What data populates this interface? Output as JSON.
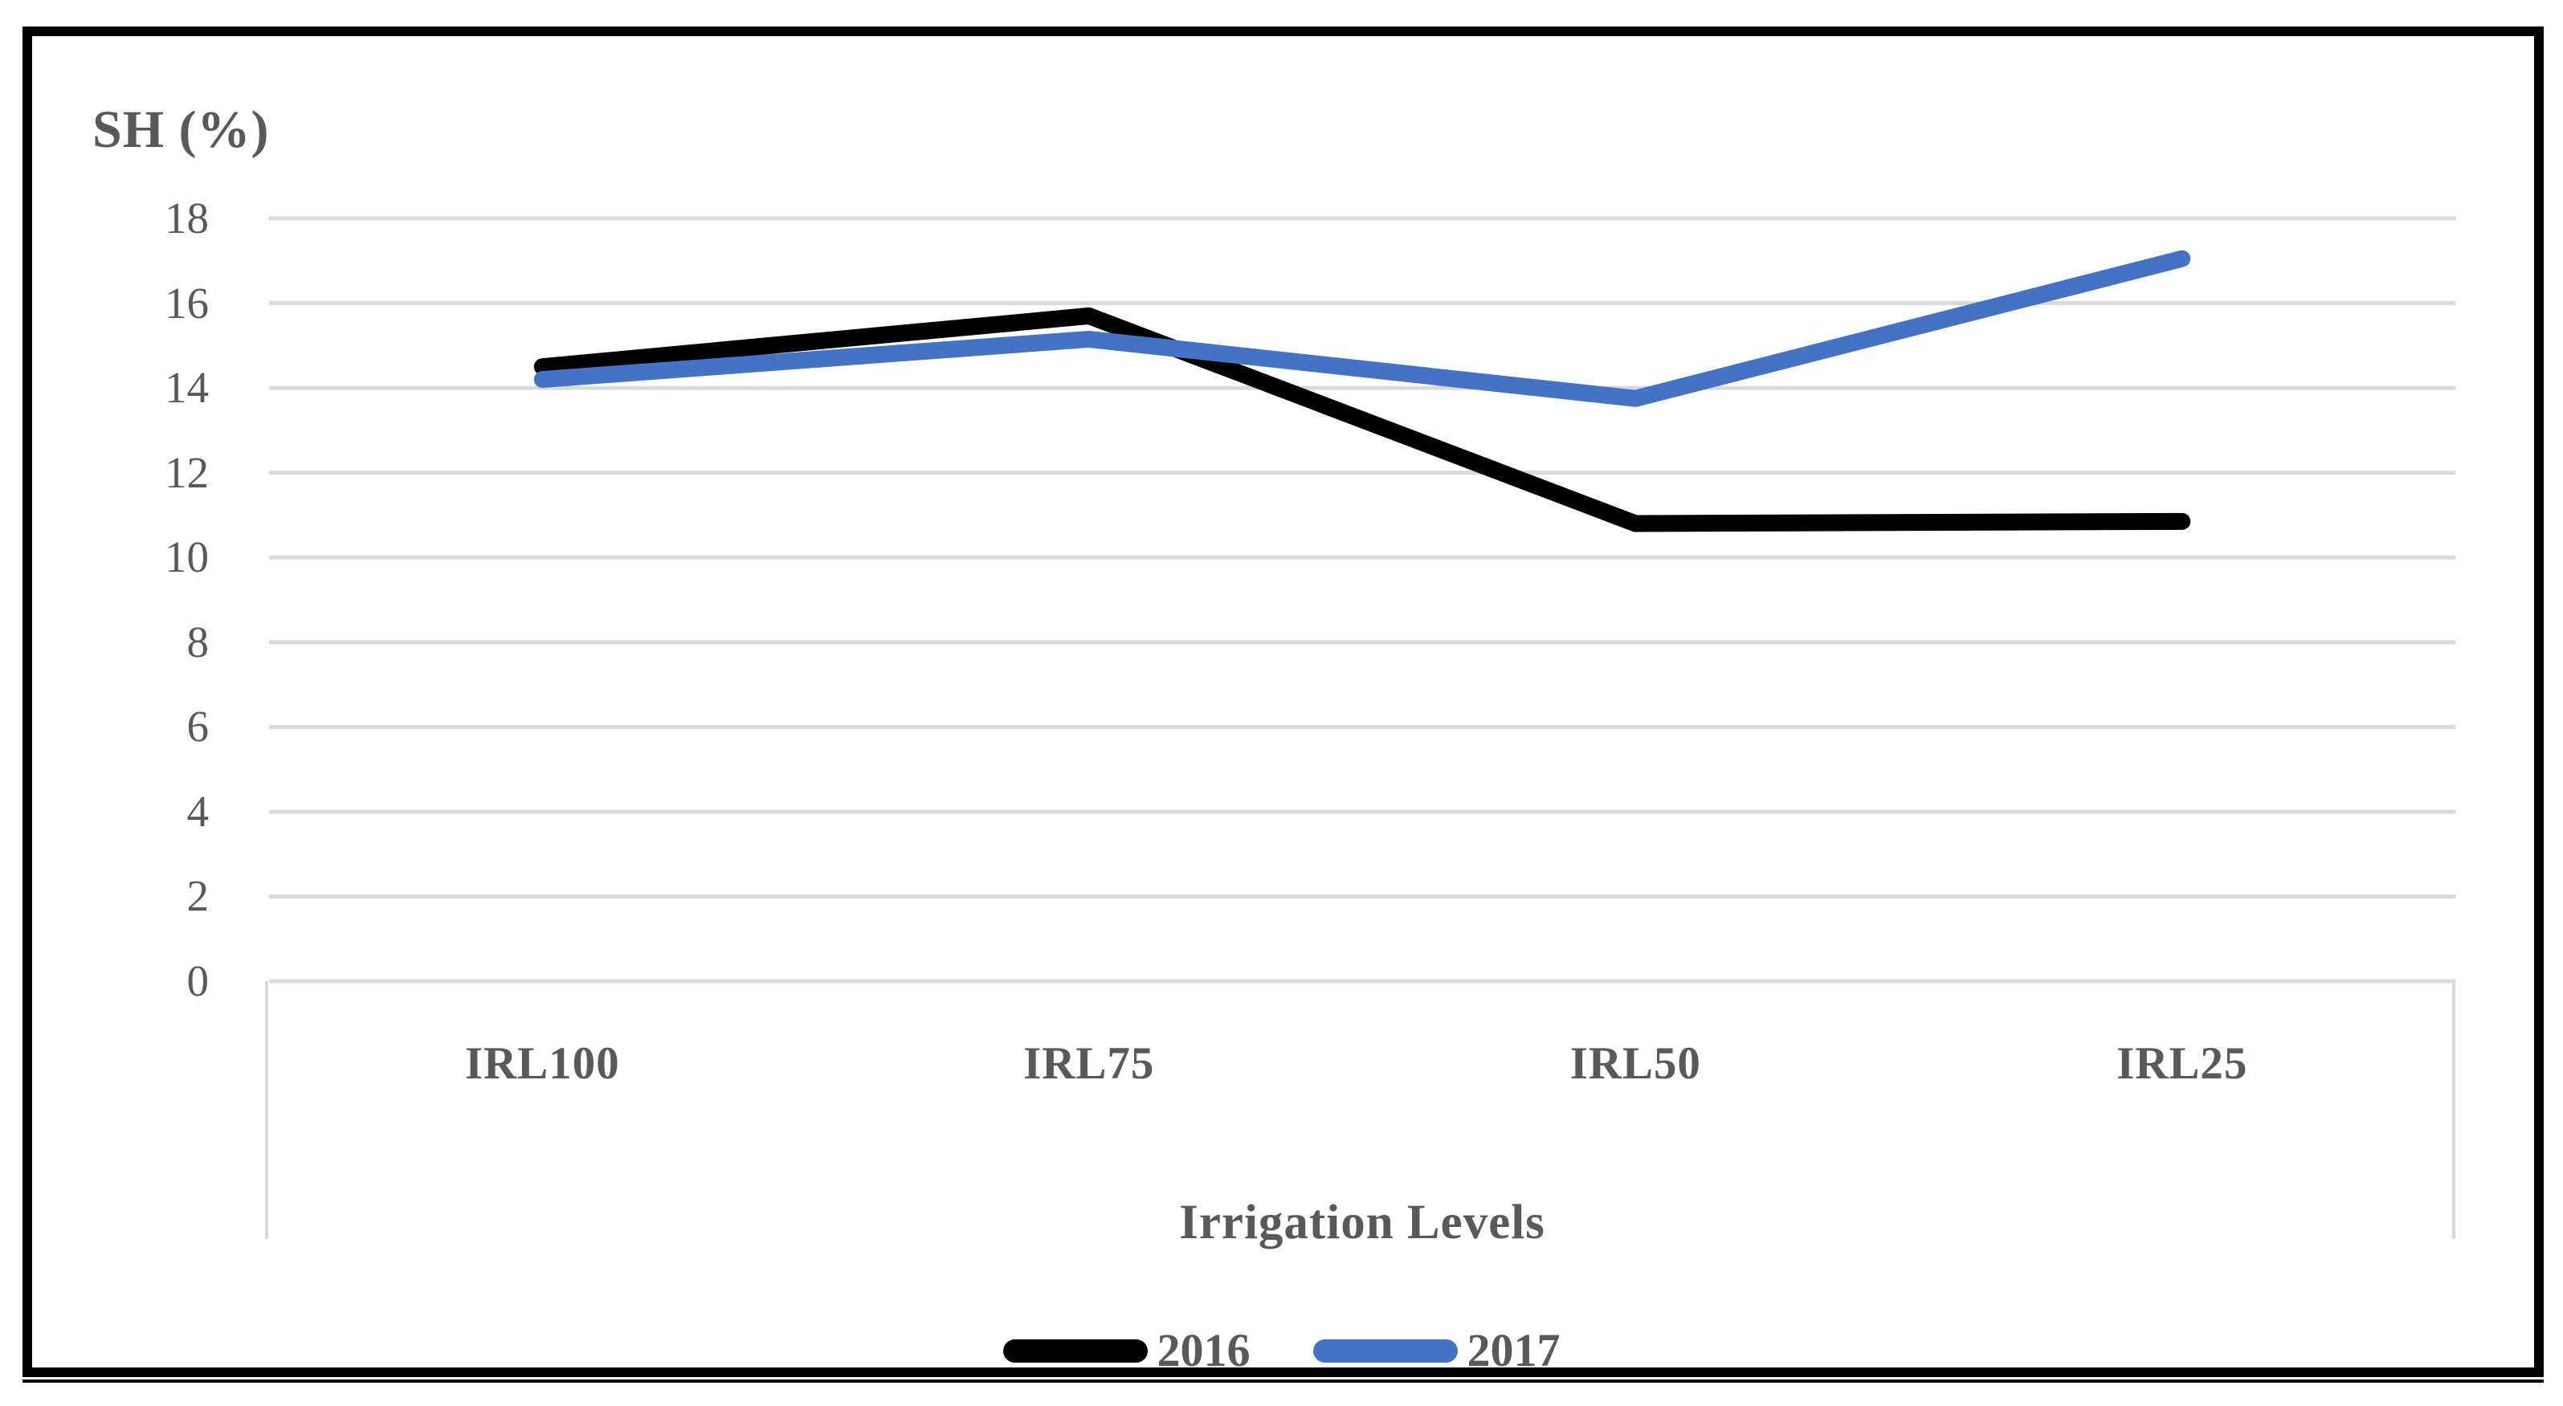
{
  "figure": {
    "title": "SH (%)",
    "x_axis_title": "Irrigation Levels"
  },
  "y_axis": {
    "tick_labels_top_to_bottom": [
      "18",
      "16",
      "14",
      "12",
      "10",
      "8",
      "6",
      "4",
      "2",
      "0"
    ]
  },
  "legend": {
    "items": [
      {
        "label": "2016",
        "color": "#000000"
      },
      {
        "label": "2017",
        "color": "#4472C4"
      }
    ]
  },
  "colors": {
    "text": "#595959",
    "gridline": "#D9D9D9",
    "axis_line": "#D9D9D9",
    "frame": "#000000",
    "background": "#FFFFFF",
    "series_2016": "#000000",
    "series_2017": "#4472C4"
  },
  "chart_data": {
    "type": "line",
    "title": "SH (%)",
    "xlabel": "Irrigation Levels",
    "ylabel": "",
    "categories": [
      "IRL100",
      "IRL75",
      "IRL50",
      "IRL25"
    ],
    "series": [
      {
        "name": "2016",
        "color": "#000000",
        "values": [
          14.5,
          15.7,
          10.8,
          10.85
        ]
      },
      {
        "name": "2017",
        "color": "#4472C4",
        "values": [
          14.2,
          15.15,
          13.75,
          17.05
        ]
      }
    ],
    "ylim": [
      0,
      18
    ],
    "ytick_step": 2,
    "grid": true,
    "legend_position": "bottom"
  }
}
